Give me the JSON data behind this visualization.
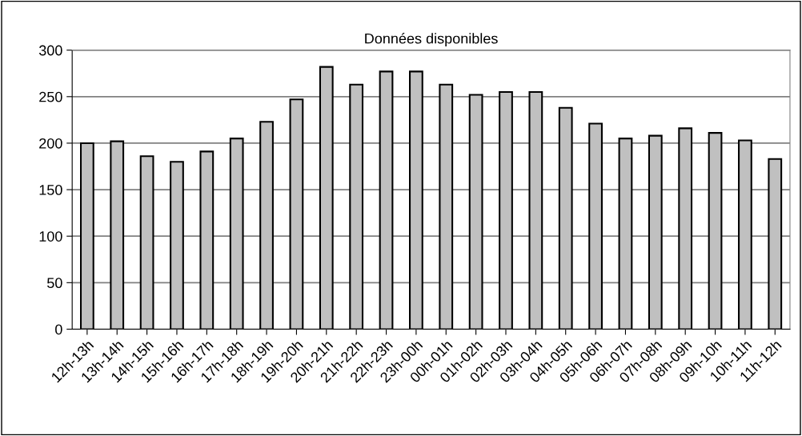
{
  "chart_data": {
    "type": "bar",
    "title": "Données disponibles",
    "categories": [
      "12h-13h",
      "13h-14h",
      "14h-15h",
      "15h-16h",
      "16h-17h",
      "17h-18h",
      "18h-19h",
      "19h-20h",
      "20h-21h",
      "21h-22h",
      "22h-23h",
      "23h-00h",
      "00h-01h",
      "01h-02h",
      "02h-03h",
      "03h-04h",
      "04h-05h",
      "05h-06h",
      "06h-07h",
      "07h-08h",
      "08h-09h",
      "09h-10h",
      "10h-11h",
      "11h-12h"
    ],
    "values": [
      200,
      202,
      186,
      180,
      191,
      205,
      223,
      247,
      282,
      263,
      277,
      277,
      263,
      252,
      255,
      255,
      238,
      221,
      205,
      208,
      216,
      211,
      203,
      183
    ],
    "color": "#c0c0c0",
    "ylim": [
      0,
      300
    ],
    "yticks": [
      0,
      50,
      100,
      150,
      200,
      250,
      300
    ],
    "grid": "y",
    "legend": false
  }
}
